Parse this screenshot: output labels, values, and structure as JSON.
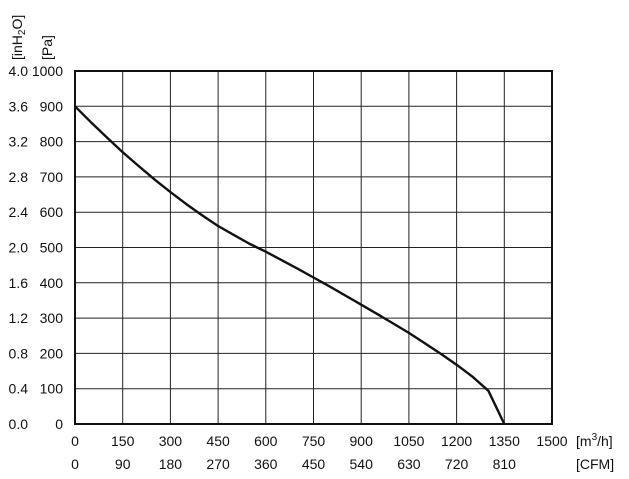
{
  "chart_data": {
    "type": "line",
    "title": "",
    "x_axis_primary": {
      "unit_label": "[m³/h]",
      "unit_base": "[m",
      "unit_sup": "3",
      "unit_tail": "/h]",
      "range": [
        0,
        1500
      ],
      "ticks": [
        "0",
        "150",
        "300",
        "450",
        "600",
        "750",
        "900",
        "1050",
        "1200",
        "1350",
        "1500"
      ]
    },
    "x_axis_secondary": {
      "unit_label": "[CFM]",
      "ticks": [
        "0",
        "90",
        "180",
        "270",
        "360",
        "450",
        "540",
        "630",
        "720",
        "810"
      ]
    },
    "y_axis_primary": {
      "unit_label": "[Pa]",
      "range": [
        0,
        1000
      ],
      "ticks": [
        "0",
        "100",
        "200",
        "300",
        "400",
        "500",
        "600",
        "700",
        "800",
        "900",
        "1000"
      ]
    },
    "y_axis_secondary": {
      "unit_label": "[inH2O]",
      "unit_base": "[inH",
      "unit_sub": "2",
      "unit_tail": "O]",
      "ticks": [
        "0.0",
        "0.4",
        "0.8",
        "1.2",
        "1.6",
        "2.0",
        "2.4",
        "2.8",
        "3.2",
        "3.6",
        "4.0"
      ]
    },
    "grid": true,
    "series": [
      {
        "x": [
          0,
          50,
          100,
          150,
          200,
          250,
          300,
          350,
          400,
          450,
          500,
          550,
          600,
          650,
          700,
          750,
          800,
          850,
          900,
          950,
          1000,
          1050,
          1100,
          1150,
          1200,
          1250,
          1300,
          1350
        ],
        "y": [
          900,
          855,
          812,
          770,
          731,
          693,
          657,
          623,
          591,
          561,
          535,
          510,
          488,
          464,
          440,
          415,
          390,
          364,
          338,
          312,
          285,
          258,
          229,
          199,
          168,
          134,
          94,
          0
        ]
      }
    ],
    "colors": {
      "line": "#111111",
      "grid": "#222222",
      "frame": "#111111"
    }
  }
}
